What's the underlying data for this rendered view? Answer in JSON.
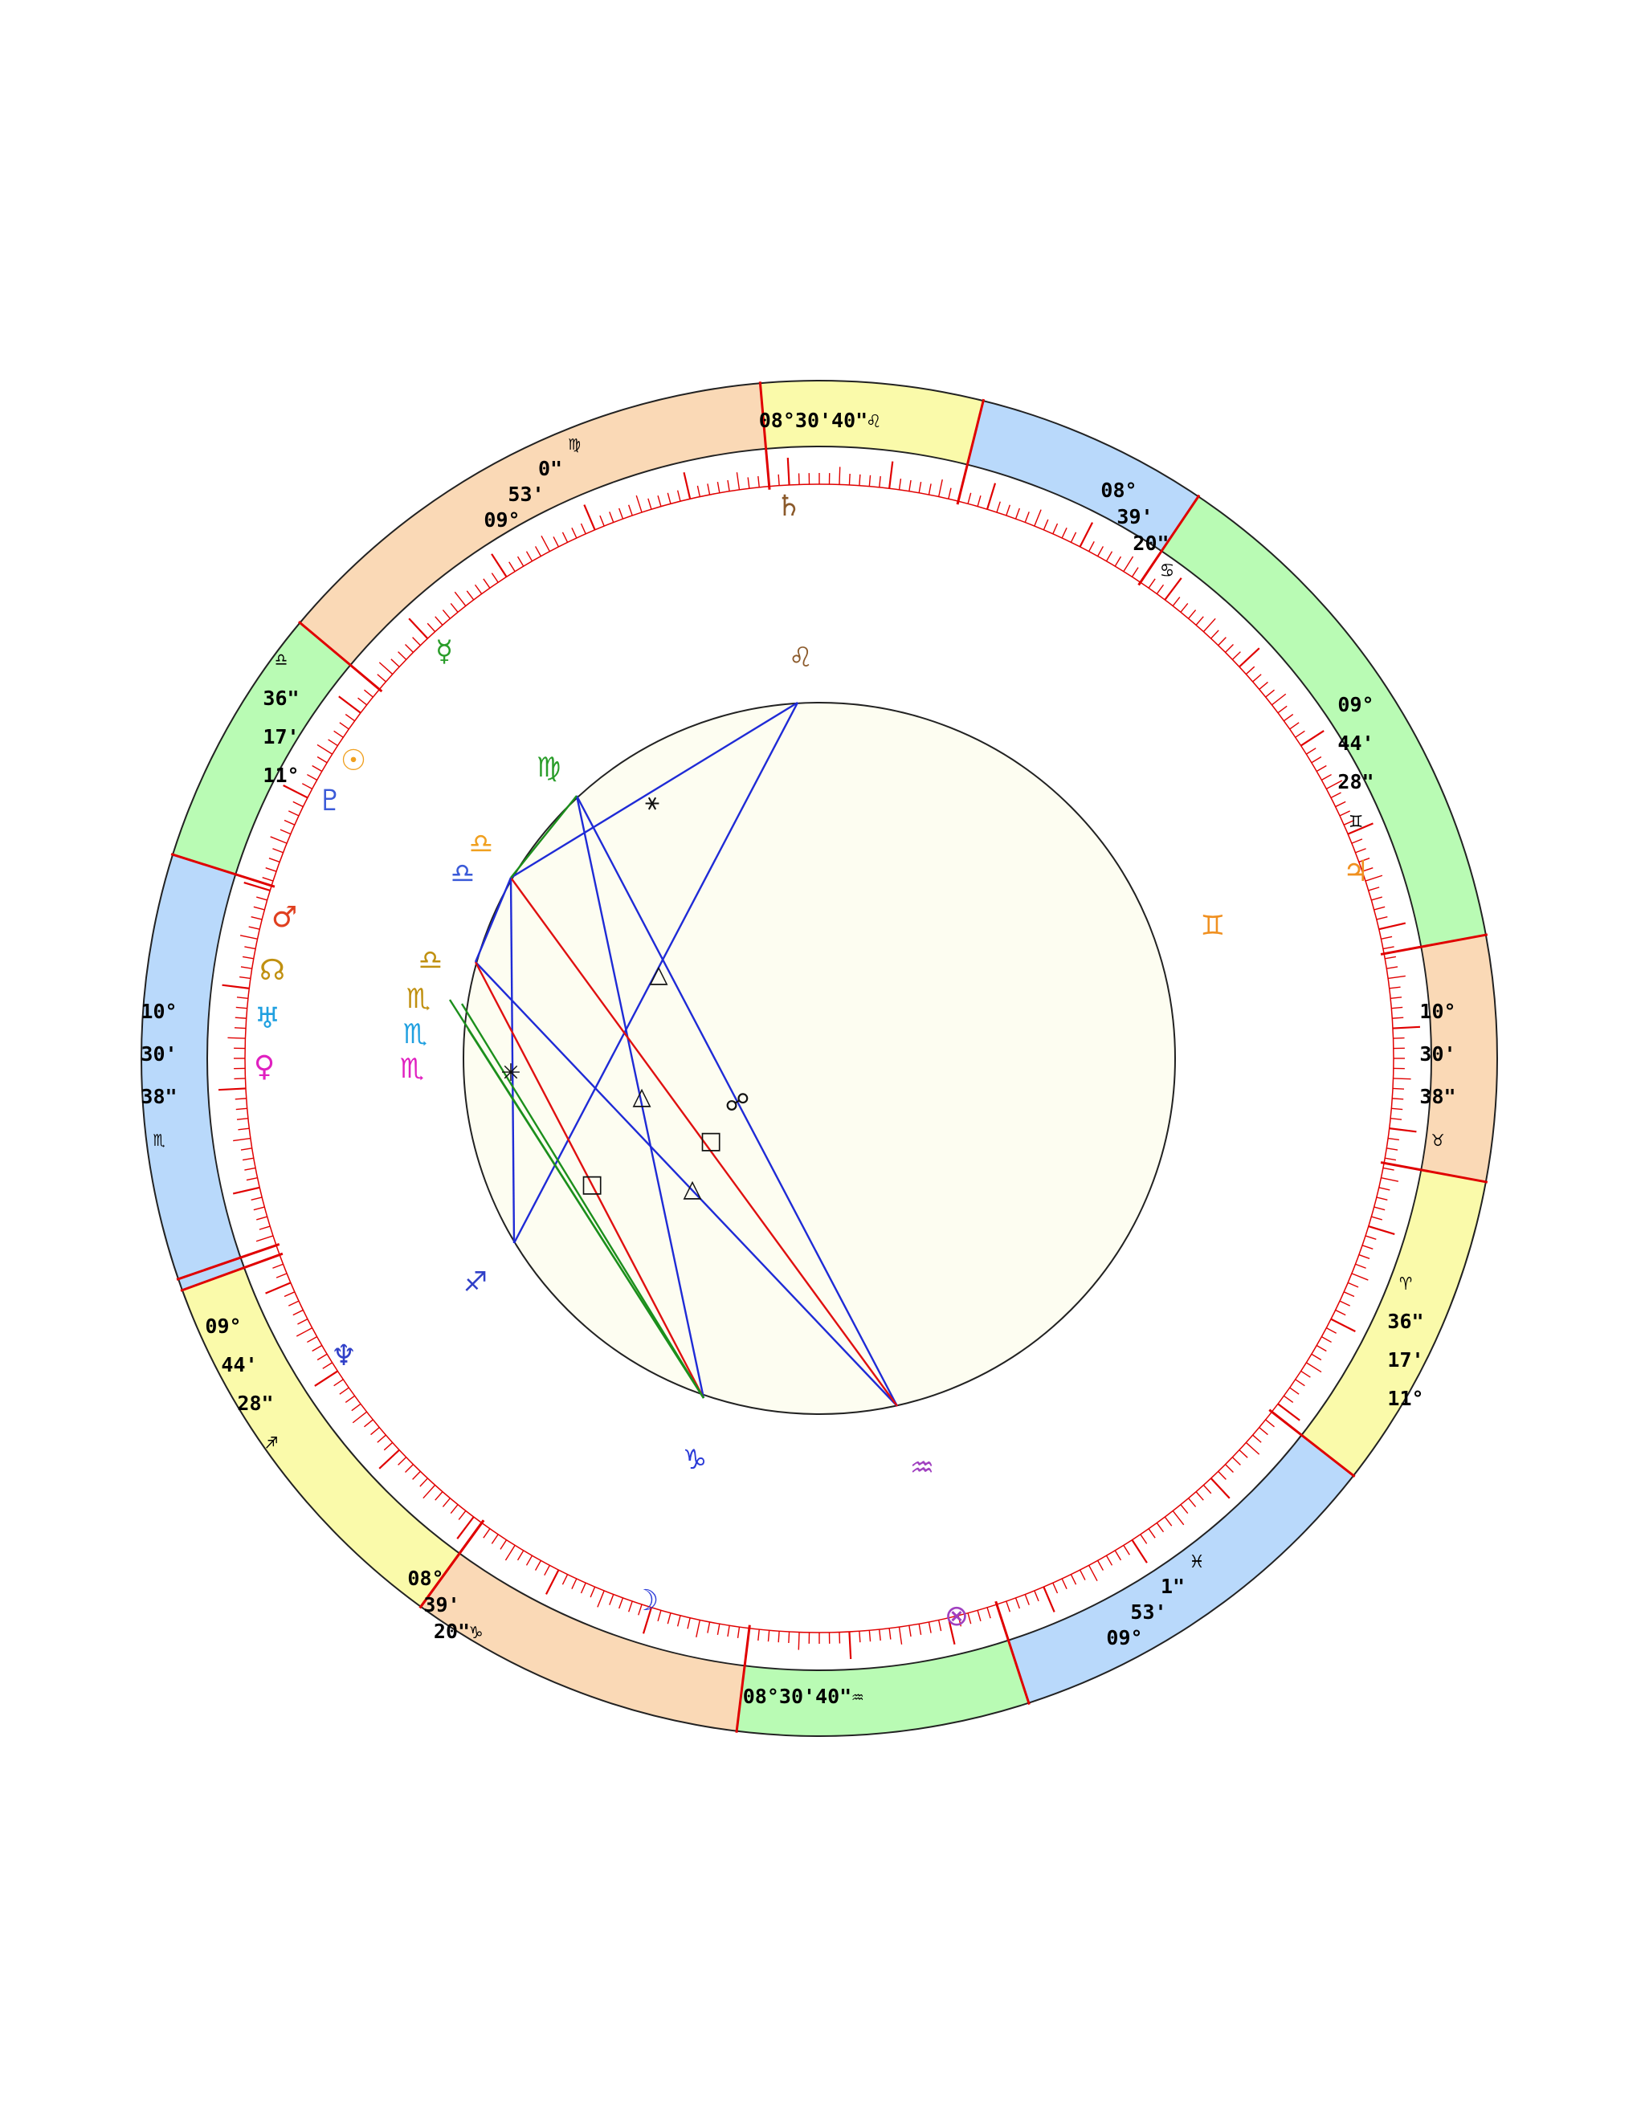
{
  "colors": {
    "band_yellow": "#fafaaa",
    "band_blue": "#b9d9fb",
    "band_green": "#b9fbb4",
    "band_orange": "#fad9b6",
    "outline": "#222222",
    "tick": "#e00000",
    "inner_fill": "#fdfdf1",
    "aspect_blue": "#1f2bd6",
    "aspect_red": "#e01010",
    "aspect_green": "#1c8f1c"
  },
  "cusp_bands": [
    {
      "id": "top",
      "color": "yellow",
      "lines": [
        "08°30'40\"♌"
      ],
      "sign": "leo",
      "icon": "leo-sign-icon"
    },
    {
      "id": "top-right",
      "color": "blue",
      "lines": [
        "08°",
        "39'",
        "20\"",
        "♋"
      ],
      "sign": "cancer",
      "icon": "cancer-sign-icon"
    },
    {
      "id": "right-upper",
      "color": "green",
      "lines": [
        "09°",
        "44'",
        "28\"",
        "♊"
      ],
      "sign": "gemini",
      "icon": "gemini-sign-icon"
    },
    {
      "id": "right",
      "color": "orange",
      "lines": [
        "10°",
        "30'",
        "38\"",
        "♉"
      ],
      "sign": "taurus",
      "icon": "taurus-sign-icon"
    },
    {
      "id": "right-lower",
      "color": "yellow",
      "lines": [
        "♈",
        "36\"",
        "17'",
        "11°"
      ],
      "sign": "aries",
      "icon": "aries-sign-icon"
    },
    {
      "id": "bottom-right",
      "color": "blue",
      "lines": [
        "♓",
        "1\"",
        "53'",
        "09°"
      ],
      "sign": "pisces",
      "icon": "pisces-sign-icon"
    },
    {
      "id": "bottom",
      "color": "green",
      "lines": [
        "08°30'40\"♒"
      ],
      "sign": "aquarius",
      "icon": "aquarius-sign-icon"
    },
    {
      "id": "bottom-left",
      "color": "orange",
      "lines": [
        "08°",
        "39'",
        "20\"♑"
      ],
      "sign": "capricorn",
      "icon": "capricorn-sign-icon"
    },
    {
      "id": "left-lower",
      "color": "yellow",
      "lines": [
        "09°",
        "44'",
        "28\"",
        "♐"
      ],
      "sign": "sagittarius",
      "icon": "sagittarius-sign-icon"
    },
    {
      "id": "left",
      "color": "blue",
      "lines": [
        "10°",
        "30'",
        "38\"",
        "♏"
      ],
      "sign": "scorpio",
      "icon": "scorpio-sign-icon"
    },
    {
      "id": "left-upper",
      "color": "green",
      "lines": [
        "♎",
        "36\"",
        "17'",
        "11°"
      ],
      "sign": "libra",
      "icon": "libra-sign-icon"
    },
    {
      "id": "top-left",
      "color": "orange",
      "lines": [
        "♍",
        "0\"",
        "53'",
        "09°"
      ],
      "sign": "virgo",
      "icon": "virgo-sign-icon"
    }
  ],
  "planets": [
    {
      "name": "saturn",
      "glyph": "♄",
      "icon": "saturn-icon",
      "color": "#8b5a2b"
    },
    {
      "name": "mercury",
      "glyph": "☿",
      "icon": "mercury-icon",
      "color": "#2a9d2a"
    },
    {
      "name": "sun",
      "glyph": "☉",
      "icon": "sun-icon",
      "color": "#f0a020"
    },
    {
      "name": "pluto",
      "glyph": "♇",
      "icon": "pluto-icon",
      "color": "#3a5ad8"
    },
    {
      "name": "mars",
      "glyph": "♂",
      "icon": "mars-icon",
      "color": "#e04020"
    },
    {
      "name": "north-node",
      "glyph": "☊",
      "icon": "north-node-icon",
      "color": "#c09010"
    },
    {
      "name": "uranus",
      "glyph": "♅",
      "icon": "uranus-icon",
      "color": "#20a0e0"
    },
    {
      "name": "venus",
      "glyph": "♀",
      "icon": "venus-icon",
      "color": "#e020c0"
    },
    {
      "name": "neptune",
      "glyph": "♆",
      "icon": "neptune-icon",
      "color": "#3040c8"
    },
    {
      "name": "moon",
      "glyph": "☽",
      "icon": "moon-icon",
      "color": "#2a3ad8"
    },
    {
      "name": "part-of-fortune",
      "glyph": "⊗",
      "icon": "part-of-fortune-icon",
      "color": "#a040c0"
    },
    {
      "name": "jupiter",
      "glyph": "♃",
      "icon": "jupiter-icon",
      "color": "#f09020"
    }
  ],
  "sign_markers": [
    {
      "name": "leo",
      "glyph": "♌",
      "icon": "leo-marker-icon",
      "color": "#8b5a2b"
    },
    {
      "name": "virgo",
      "glyph": "♍",
      "icon": "virgo-marker-icon",
      "color": "#2a9d2a"
    },
    {
      "name": "libra-a",
      "glyph": "♎",
      "icon": "libra-marker-icon",
      "color": "#f0a020"
    },
    {
      "name": "libra-b",
      "glyph": "♎",
      "icon": "libra-marker-icon",
      "color": "#3a5ad8"
    },
    {
      "name": "libra-c",
      "glyph": "♎",
      "icon": "libra-marker-icon",
      "color": "#c09010"
    },
    {
      "name": "scorpio-a",
      "glyph": "♏",
      "icon": "scorpio-marker-icon",
      "color": "#c09010"
    },
    {
      "name": "scorpio-b",
      "glyph": "♏",
      "icon": "scorpio-marker-icon",
      "color": "#20a0e0"
    },
    {
      "name": "scorpio-c",
      "glyph": "♏",
      "icon": "scorpio-marker-icon",
      "color": "#e020c0"
    },
    {
      "name": "sagittarius",
      "glyph": "♐",
      "icon": "sagittarius-marker-icon",
      "color": "#3040c8"
    },
    {
      "name": "capricorn",
      "glyph": "♑",
      "icon": "capricorn-marker-icon",
      "color": "#2a3ad8"
    },
    {
      "name": "aquarius",
      "glyph": "♒",
      "icon": "aquarius-marker-icon",
      "color": "#a040c0"
    },
    {
      "name": "gemini",
      "glyph": "♊",
      "icon": "gemini-marker-icon",
      "color": "#f09020"
    }
  ],
  "aspect_symbols": [
    {
      "glyph": "⚹",
      "name": "sextile",
      "icon": "sextile-icon"
    },
    {
      "glyph": "△",
      "name": "trine",
      "icon": "trine-icon"
    },
    {
      "glyph": "△",
      "name": "trine",
      "icon": "trine-icon"
    },
    {
      "glyph": "△",
      "name": "trine",
      "icon": "trine-icon"
    },
    {
      "glyph": "☍",
      "name": "opposition",
      "icon": "opposition-icon"
    },
    {
      "glyph": "□",
      "name": "square",
      "icon": "square-icon"
    },
    {
      "glyph": "□",
      "name": "square",
      "icon": "square-icon"
    },
    {
      "glyph": "✳",
      "name": "sextile",
      "icon": "sextile-icon"
    }
  ]
}
